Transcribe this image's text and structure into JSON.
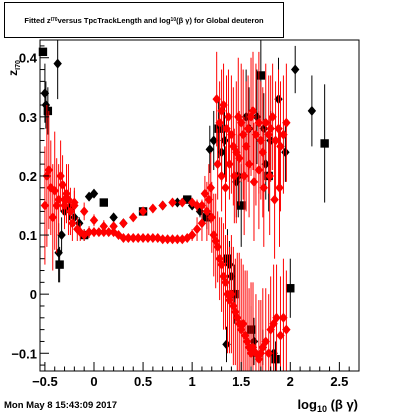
{
  "title": {
    "t1": "Fitted  z",
    "s1": "I70",
    "t2": "  versus TpcTrackLength and log",
    "s2": "10",
    "t3": "(β γ) for Global deuteron"
  },
  "timestamp": "Mon May  8 15:43:09 2017",
  "colors": {
    "series_black": "#000000",
    "series_red": "#ff0000"
  },
  "chart_data": {
    "type": "scatter",
    "title": "Fitted z_I70 versus TpcTrackLength and log10(β γ) for Global deuteron",
    "xlabel": {
      "main": "log",
      "sub": "10",
      "rest": " (β γ)"
    },
    "ylabel": {
      "main": "z",
      "sub": "I70"
    },
    "xlim": [
      -0.55,
      2.7
    ],
    "ylim": [
      -0.13,
      0.43
    ],
    "x_ticks": [
      -0.5,
      0,
      0.5,
      1,
      1.5,
      2,
      2.5
    ],
    "x_tick_labels": [
      "−0.5",
      "0",
      "0.5",
      "1",
      "1.5",
      "2",
      "2.5"
    ],
    "y_ticks": [
      -0.1,
      0,
      0.1,
      0.2,
      0.3,
      0.4
    ],
    "y_tick_labels": [
      "−0.1",
      "0",
      "0.1",
      "0.2",
      "0.3",
      "0.4"
    ],
    "grid": false,
    "series": [
      {
        "color": "#000000",
        "points": [
          [
            -0.52,
            0.41,
            0.0
          ],
          [
            -0.5,
            0.34,
            0.05
          ],
          [
            -0.49,
            0.32,
            0.04
          ],
          [
            -0.47,
            0.31,
            0.04
          ],
          [
            -0.37,
            0.39,
            0.06
          ],
          [
            -0.36,
            0.07,
            0.05
          ],
          [
            -0.35,
            0.05,
            0.03
          ],
          [
            -0.33,
            0.1,
            0.03
          ],
          [
            -0.3,
            0.14,
            0.02
          ],
          [
            -0.25,
            0.145,
            0.02
          ],
          [
            -0.2,
            0.13,
            0.015
          ],
          [
            -0.15,
            0.12,
            0.01
          ],
          [
            -0.1,
            0.1,
            0.01
          ],
          [
            -0.05,
            0.165,
            0.005
          ],
          [
            0.0,
            0.17,
            0.005
          ],
          [
            0.1,
            0.155,
            0.005
          ],
          [
            0.2,
            0.13,
            0.004
          ],
          [
            0.3,
            0.12,
            0.004
          ],
          [
            0.5,
            0.14,
            0.004
          ],
          [
            0.7,
            0.15,
            0.004
          ],
          [
            0.85,
            0.155,
            0.004
          ],
          [
            0.95,
            0.16,
            0.004
          ],
          [
            1.0,
            0.15,
            0.005
          ],
          [
            1.08,
            0.14,
            0.01
          ],
          [
            1.15,
            0.13,
            0.02
          ],
          [
            1.18,
            0.245,
            0.04
          ],
          [
            1.22,
            0.26,
            0.05
          ],
          [
            1.27,
            0.28,
            0.05
          ],
          [
            1.3,
            0.24,
            0.05
          ],
          [
            1.33,
            0.26,
            0.06
          ],
          [
            1.36,
            0.06,
            0.05
          ],
          [
            1.38,
            0.05,
            0.04
          ],
          [
            1.4,
            0.03,
            0.05
          ],
          [
            1.43,
            0.0,
            0.05
          ],
          [
            1.45,
            0.19,
            0.06
          ],
          [
            1.47,
            0.2,
            0.07
          ],
          [
            1.5,
            0.15,
            0.07
          ],
          [
            1.55,
            0.3,
            0.08
          ],
          [
            1.58,
            0.28,
            0.07
          ],
          [
            1.6,
            -0.06,
            0.04
          ],
          [
            1.63,
            -0.08,
            0.04
          ],
          [
            1.66,
            0.3,
            0.08
          ],
          [
            1.7,
            0.37,
            0.08
          ],
          [
            1.73,
            0.28,
            0.06
          ],
          [
            1.75,
            0.22,
            0.06
          ],
          [
            1.78,
            0.2,
            0.06
          ],
          [
            1.8,
            0.26,
            0.05
          ],
          [
            1.83,
            -0.1,
            0.04
          ],
          [
            1.85,
            -0.11,
            0.03
          ],
          [
            1.88,
            0.33,
            0.07
          ],
          [
            1.95,
            0.24,
            0.05
          ],
          [
            2.0,
            0.01,
            0.05
          ],
          [
            2.05,
            0.38,
            0.04
          ],
          [
            2.22,
            0.31,
            0.06
          ],
          [
            2.35,
            0.255,
            0.1
          ],
          [
            1.35,
            -0.085,
            0.03
          ],
          [
            1.72,
            -0.09,
            0.03
          ]
        ]
      },
      {
        "color": "#ff0000",
        "points": [
          [
            -0.5,
            0.15,
            0.1
          ],
          [
            -0.48,
            0.2,
            0.12
          ],
          [
            -0.46,
            0.21,
            0.1
          ],
          [
            -0.44,
            0.18,
            0.08
          ],
          [
            -0.42,
            0.13,
            0.09
          ],
          [
            -0.4,
            0.175,
            0.1
          ],
          [
            -0.38,
            0.15,
            0.08
          ],
          [
            -0.36,
            0.16,
            0.06
          ],
          [
            -0.34,
            0.2,
            0.06
          ],
          [
            -0.32,
            0.185,
            0.05
          ],
          [
            -0.3,
            0.15,
            0.04
          ],
          [
            -0.28,
            0.17,
            0.05
          ],
          [
            -0.26,
            0.16,
            0.06
          ],
          [
            -0.24,
            0.14,
            0.04
          ],
          [
            -0.22,
            0.12,
            0.03
          ],
          [
            -0.2,
            0.15,
            0.03
          ],
          [
            -0.17,
            0.11,
            0.02
          ],
          [
            -0.14,
            0.105,
            0.015
          ],
          [
            -0.1,
            0.1,
            0.01
          ],
          [
            -0.05,
            0.105,
            0.01
          ],
          [
            0.0,
            0.105,
            0.008
          ],
          [
            0.05,
            0.105,
            0.006
          ],
          [
            0.1,
            0.105,
            0.005
          ],
          [
            0.15,
            0.105,
            0.005
          ],
          [
            0.2,
            0.105,
            0.005
          ],
          [
            0.25,
            0.1,
            0.004
          ],
          [
            0.3,
            0.095,
            0.004
          ],
          [
            0.35,
            0.095,
            0.004
          ],
          [
            0.4,
            0.095,
            0.004
          ],
          [
            0.45,
            0.095,
            0.004
          ],
          [
            0.5,
            0.095,
            0.004
          ],
          [
            0.55,
            0.095,
            0.004
          ],
          [
            0.6,
            0.095,
            0.004
          ],
          [
            0.65,
            0.095,
            0.004
          ],
          [
            0.7,
            0.093,
            0.004
          ],
          [
            0.75,
            0.093,
            0.004
          ],
          [
            0.8,
            0.093,
            0.004
          ],
          [
            0.85,
            0.093,
            0.004
          ],
          [
            0.9,
            0.093,
            0.004
          ],
          [
            0.95,
            0.095,
            0.005
          ],
          [
            1.0,
            0.1,
            0.01
          ],
          [
            1.05,
            0.11,
            0.02
          ],
          [
            -0.3,
            0.16,
            0.03
          ],
          [
            -0.2,
            0.155,
            0.02
          ],
          [
            -0.1,
            0.14,
            0.015
          ],
          [
            0.0,
            0.125,
            0.01
          ],
          [
            0.1,
            0.115,
            0.01
          ],
          [
            0.2,
            0.115,
            0.008
          ],
          [
            0.3,
            0.12,
            0.006
          ],
          [
            0.4,
            0.13,
            0.005
          ],
          [
            0.5,
            0.14,
            0.005
          ],
          [
            0.6,
            0.145,
            0.005
          ],
          [
            0.7,
            0.15,
            0.005
          ],
          [
            0.8,
            0.155,
            0.005
          ],
          [
            0.9,
            0.155,
            0.005
          ],
          [
            1.0,
            0.155,
            0.006
          ],
          [
            1.05,
            0.15,
            0.01
          ],
          [
            1.1,
            0.15,
            0.01
          ],
          [
            1.1,
            0.12,
            0.03
          ],
          [
            1.13,
            0.17,
            0.03
          ],
          [
            1.15,
            0.14,
            0.05
          ],
          [
            1.17,
            0.16,
            0.06
          ],
          [
            1.19,
            0.18,
            0.06
          ],
          [
            1.2,
            0.13,
            0.06
          ],
          [
            1.22,
            0.1,
            0.07
          ],
          [
            1.24,
            0.09,
            0.08
          ],
          [
            1.26,
            0.08,
            0.06
          ],
          [
            1.28,
            0.06,
            0.07
          ],
          [
            1.3,
            0.05,
            0.08
          ],
          [
            1.32,
            0.03,
            0.09
          ],
          [
            1.34,
            0.02,
            0.08
          ],
          [
            1.36,
            0.0,
            0.1
          ],
          [
            1.38,
            -0.01,
            0.09
          ],
          [
            1.4,
            0.0,
            0.1
          ],
          [
            1.42,
            -0.02,
            0.1
          ],
          [
            1.44,
            -0.03,
            0.09
          ],
          [
            1.46,
            -0.04,
            0.11
          ],
          [
            1.48,
            -0.05,
            0.12
          ],
          [
            1.5,
            -0.06,
            0.12
          ],
          [
            1.52,
            -0.05,
            0.1
          ],
          [
            1.54,
            -0.07,
            0.11
          ],
          [
            1.56,
            -0.08,
            0.12
          ],
          [
            1.58,
            -0.09,
            0.1
          ],
          [
            1.6,
            -0.1,
            0.12
          ],
          [
            1.62,
            -0.09,
            0.11
          ],
          [
            1.65,
            -0.1,
            0.1
          ],
          [
            1.68,
            -0.11,
            0.1
          ],
          [
            1.7,
            -0.1,
            0.09
          ],
          [
            1.72,
            -0.09,
            0.1
          ],
          [
            1.75,
            -0.08,
            0.09
          ],
          [
            1.78,
            -0.1,
            0.1
          ],
          [
            1.8,
            -0.06,
            0.09
          ],
          [
            1.83,
            -0.05,
            0.1
          ],
          [
            1.86,
            -0.04,
            0.09
          ],
          [
            1.9,
            -0.07,
            0.1
          ],
          [
            1.93,
            -0.04,
            0.1
          ],
          [
            1.96,
            -0.06,
            0.1
          ],
          [
            1.25,
            0.33,
            0.08
          ],
          [
            1.28,
            0.29,
            0.07
          ],
          [
            1.3,
            0.31,
            0.07
          ],
          [
            1.32,
            0.32,
            0.07
          ],
          [
            1.35,
            0.28,
            0.09
          ],
          [
            1.37,
            0.3,
            0.08
          ],
          [
            1.4,
            0.27,
            0.1
          ],
          [
            1.42,
            0.25,
            0.1
          ],
          [
            1.45,
            0.24,
            0.12
          ],
          [
            1.47,
            0.3,
            0.1
          ],
          [
            1.5,
            0.29,
            0.1
          ],
          [
            1.52,
            0.27,
            0.11
          ],
          [
            1.55,
            0.25,
            0.11
          ],
          [
            1.57,
            0.28,
            0.09
          ],
          [
            1.6,
            0.3,
            0.1
          ],
          [
            1.62,
            0.31,
            0.1
          ],
          [
            1.65,
            0.27,
            0.12
          ],
          [
            1.68,
            0.29,
            0.12
          ],
          [
            1.7,
            0.26,
            0.1
          ],
          [
            1.72,
            0.24,
            0.11
          ],
          [
            1.75,
            0.29,
            0.1
          ],
          [
            1.78,
            0.27,
            0.1
          ],
          [
            1.8,
            0.28,
            0.09
          ],
          [
            1.82,
            0.3,
            0.09
          ],
          [
            1.85,
            0.26,
            0.1
          ],
          [
            1.88,
            0.28,
            0.1
          ],
          [
            1.9,
            0.25,
            0.11
          ],
          [
            1.93,
            0.27,
            0.1
          ],
          [
            1.96,
            0.29,
            0.1
          ],
          [
            1.26,
            0.22,
            0.06
          ],
          [
            1.3,
            0.2,
            0.06
          ],
          [
            1.34,
            0.18,
            0.07
          ],
          [
            1.38,
            0.22,
            0.06
          ],
          [
            1.43,
            0.2,
            0.08
          ],
          [
            1.48,
            0.23,
            0.08
          ],
          [
            1.53,
            0.2,
            0.1
          ],
          [
            1.58,
            0.22,
            0.09
          ],
          [
            1.63,
            0.19,
            0.1
          ],
          [
            1.68,
            0.21,
            0.1
          ],
          [
            1.73,
            0.18,
            0.1
          ],
          [
            1.79,
            0.2,
            0.1
          ],
          [
            1.84,
            0.16,
            0.1
          ],
          [
            1.89,
            0.18,
            0.1
          ]
        ]
      }
    ]
  }
}
